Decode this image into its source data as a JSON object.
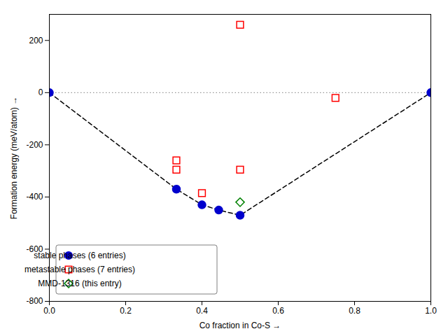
{
  "chart_data": {
    "type": "scatter",
    "xlabel": "Co fraction in Co-S",
    "ylabel": "Formation energy (meV/atom)",
    "xlim": [
      0.0,
      1.0
    ],
    "ylim": [
      -800,
      300
    ],
    "xticks": [
      {
        "value": 0.0,
        "label": "0.0"
      },
      0.2,
      0.4,
      0.6,
      0.8,
      {
        "value": 1.0,
        "label": "1.0"
      }
    ],
    "yticks": [
      -800,
      -600,
      -400,
      -200,
      0,
      200
    ],
    "grid": false,
    "legend": "lower left",
    "series": [
      {
        "type": "hline",
        "values": [
          0
        ],
        "color": "gray",
        "line_style": "dotted"
      },
      {
        "type": "line",
        "x": [
          0.0,
          0.333,
          0.4,
          0.444,
          0.5,
          1.0
        ],
        "values": [
          0,
          -370,
          -430,
          -450,
          -470,
          0
        ],
        "color": "black",
        "line_style": "dashed"
      },
      {
        "name": "stable phases (6 entries)",
        "type": "scatter",
        "x": [
          0.0,
          0.333,
          0.4,
          0.444,
          0.5,
          1.0
        ],
        "values": [
          0,
          -370,
          -430,
          -450,
          -470,
          0
        ],
        "color": "#0000cd",
        "marker": "circle"
      },
      {
        "name": "metastable phases (7 entries)",
        "type": "scatter",
        "x": [
          0.333,
          0.333,
          0.4,
          0.5,
          0.5,
          0.75
        ],
        "values": [
          -260,
          -295,
          -385,
          -295,
          260,
          -20
        ],
        "color": "red",
        "marker": "square"
      },
      {
        "name": "MMD-1316 (this entry)",
        "type": "scatter",
        "x": [
          0.5
        ],
        "values": [
          -420
        ],
        "color": "green",
        "marker": "diamond"
      }
    ]
  }
}
